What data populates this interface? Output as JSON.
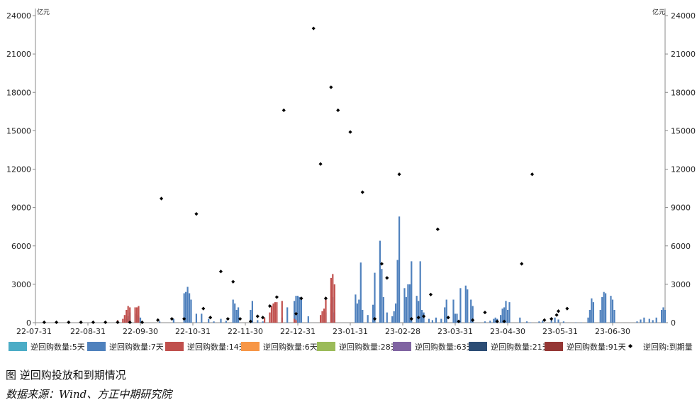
{
  "caption": {
    "title": "图   逆回购投放和到期情况",
    "source": "数据来源：Wind、方正中期研究院"
  },
  "chart_data": {
    "type": "bar",
    "unit_left": "亿元",
    "unit_right": "亿元",
    "ylim": [
      0,
      24000
    ],
    "y_ticks": [
      0,
      3000,
      6000,
      9000,
      12000,
      15000,
      18000,
      21000,
      24000
    ],
    "x_tick_labels": [
      "22-07-31",
      "22-08-31",
      "22-09-30",
      "22-10-31",
      "22-11-30",
      "22-12-31",
      "23-01-31",
      "23-02-28",
      "23-03-31",
      "23-04-30",
      "23-05-31",
      "23-06-30"
    ],
    "x_domain": [
      "2022-07-31",
      "2023-07-26"
    ],
    "grid": false,
    "legend_position": "bottom",
    "colors": {
      "5d": "#4bacc6",
      "7d": "#4f81bd",
      "14d": "#c0504d",
      "6d": "#f79646",
      "28d": "#9bbb59",
      "63d": "#8064a2",
      "21d": "#2c4d75",
      "91d": "#953735",
      "maturity": "#000000",
      "axis": "#888888"
    },
    "legend": [
      {
        "key": "5d",
        "label": "逆回购数量:5天",
        "marker": "bar"
      },
      {
        "key": "7d",
        "label": "逆回购数量:7天",
        "marker": "bar"
      },
      {
        "key": "14d",
        "label": "逆回购数量:14天",
        "marker": "bar"
      },
      {
        "key": "6d",
        "label": "逆回购数量:6天",
        "marker": "bar"
      },
      {
        "key": "28d",
        "label": "逆回购数量:28天",
        "marker": "bar"
      },
      {
        "key": "63d",
        "label": "逆回购数量:63天",
        "marker": "bar"
      },
      {
        "key": "21d",
        "label": "逆回购数量:21天",
        "marker": "bar"
      },
      {
        "key": "91d",
        "label": "逆回购数量:91天",
        "marker": "bar"
      },
      {
        "key": "maturity",
        "label": "逆回购:到期量",
        "marker": "diamond"
      }
    ],
    "series": [
      {
        "key": "7d",
        "name": "逆回购数量:7天",
        "points": [
          [
            "2022-08-05",
            20
          ],
          [
            "2022-08-12",
            20
          ],
          [
            "2022-08-19",
            20
          ],
          [
            "2022-08-26",
            20
          ],
          [
            "2022-09-02",
            20
          ],
          [
            "2022-09-09",
            20
          ],
          [
            "2022-09-16",
            20
          ],
          [
            "2022-09-21",
            300
          ],
          [
            "2022-09-22",
            500
          ],
          [
            "2022-09-23",
            800
          ],
          [
            "2022-09-26",
            700
          ],
          [
            "2022-09-27",
            600
          ],
          [
            "2022-09-28",
            500
          ],
          [
            "2022-09-29",
            400
          ],
          [
            "2022-10-10",
            100
          ],
          [
            "2022-10-18",
            300
          ],
          [
            "2022-10-24",
            2300
          ],
          [
            "2022-10-25",
            2400
          ],
          [
            "2022-10-26",
            2800
          ],
          [
            "2022-10-27",
            2300
          ],
          [
            "2022-10-28",
            1800
          ],
          [
            "2022-10-31",
            700
          ],
          [
            "2022-11-03",
            700
          ],
          [
            "2022-11-07",
            300
          ],
          [
            "2022-11-10",
            100
          ],
          [
            "2022-11-14",
            300
          ],
          [
            "2022-11-17",
            150
          ],
          [
            "2022-11-21",
            1800
          ],
          [
            "2022-11-22",
            1500
          ],
          [
            "2022-11-23",
            1000
          ],
          [
            "2022-11-24",
            1200
          ],
          [
            "2022-12-01",
            1000
          ],
          [
            "2022-12-02",
            1700
          ],
          [
            "2022-12-05",
            200
          ],
          [
            "2022-12-08",
            100
          ],
          [
            "2022-12-19",
            400
          ],
          [
            "2022-12-22",
            1200
          ],
          [
            "2022-12-26",
            1700
          ],
          [
            "2022-12-27",
            2100
          ],
          [
            "2022-12-28",
            2100
          ],
          [
            "2022-12-29",
            2000
          ],
          [
            "2022-12-30",
            1800
          ],
          [
            "2023-01-03",
            500
          ],
          [
            "2023-01-13",
            800
          ],
          [
            "2023-01-16",
            1500
          ],
          [
            "2023-01-17",
            2000
          ],
          [
            "2023-01-18",
            800
          ],
          [
            "2023-01-30",
            2200
          ],
          [
            "2023-01-31",
            1500
          ],
          [
            "2023-02-01",
            1800
          ],
          [
            "2023-02-02",
            4700
          ],
          [
            "2023-02-03",
            1000
          ],
          [
            "2023-02-06",
            600
          ],
          [
            "2023-02-09",
            1400
          ],
          [
            "2023-02-10",
            3900
          ],
          [
            "2023-02-13",
            6400
          ],
          [
            "2023-02-14",
            4200
          ],
          [
            "2023-02-15",
            2000
          ],
          [
            "2023-02-17",
            800
          ],
          [
            "2023-02-20",
            500
          ],
          [
            "2023-02-21",
            900
          ],
          [
            "2023-02-22",
            1500
          ],
          [
            "2023-02-23",
            4900
          ],
          [
            "2023-02-24",
            8300
          ],
          [
            "2023-02-27",
            2700
          ],
          [
            "2023-02-28",
            2000
          ],
          [
            "2023-03-01",
            3000
          ],
          [
            "2023-03-02",
            3000
          ],
          [
            "2023-03-03",
            4800
          ],
          [
            "2023-03-06",
            2100
          ],
          [
            "2023-03-07",
            1700
          ],
          [
            "2023-03-08",
            4800
          ],
          [
            "2023-03-09",
            1000
          ],
          [
            "2023-03-10",
            800
          ],
          [
            "2023-03-13",
            300
          ],
          [
            "2023-03-15",
            200
          ],
          [
            "2023-03-17",
            400
          ],
          [
            "2023-03-20",
            300
          ],
          [
            "2023-03-22",
            1200
          ],
          [
            "2023-03-23",
            1800
          ],
          [
            "2023-03-27",
            1800
          ],
          [
            "2023-03-28",
            700
          ],
          [
            "2023-03-29",
            700
          ],
          [
            "2023-03-31",
            2700
          ],
          [
            "2023-04-03",
            2900
          ],
          [
            "2023-04-04",
            2600
          ],
          [
            "2023-04-06",
            1800
          ],
          [
            "2023-04-07",
            1300
          ],
          [
            "2023-04-14",
            100
          ],
          [
            "2023-04-17",
            150
          ],
          [
            "2023-04-19",
            300
          ],
          [
            "2023-04-20",
            400
          ],
          [
            "2023-04-21",
            300
          ],
          [
            "2023-04-23",
            600
          ],
          [
            "2023-04-24",
            1100
          ],
          [
            "2023-04-25",
            1200
          ],
          [
            "2023-04-26",
            1700
          ],
          [
            "2023-04-27",
            1000
          ],
          [
            "2023-04-28",
            1600
          ],
          [
            "2023-05-04",
            400
          ],
          [
            "2023-05-08",
            100
          ],
          [
            "2023-05-10",
            20
          ],
          [
            "2023-05-15",
            100
          ],
          [
            "2023-05-17",
            150
          ],
          [
            "2023-05-22",
            200
          ],
          [
            "2023-05-24",
            400
          ],
          [
            "2023-05-26",
            250
          ],
          [
            "2023-05-29",
            100
          ],
          [
            "2023-06-05",
            20
          ],
          [
            "2023-06-08",
            20
          ],
          [
            "2023-06-12",
            400
          ],
          [
            "2023-06-13",
            1000
          ],
          [
            "2023-06-14",
            1900
          ],
          [
            "2023-06-15",
            1600
          ],
          [
            "2023-06-19",
            1000
          ],
          [
            "2023-06-20",
            2000
          ],
          [
            "2023-06-21",
            2400
          ],
          [
            "2023-06-22",
            2300
          ],
          [
            "2023-06-25",
            2100
          ],
          [
            "2023-06-26",
            1800
          ],
          [
            "2023-06-27",
            1000
          ],
          [
            "2023-07-10",
            100
          ],
          [
            "2023-07-12",
            250
          ],
          [
            "2023-07-14",
            400
          ],
          [
            "2023-07-17",
            300
          ],
          [
            "2023-07-19",
            200
          ],
          [
            "2023-07-21",
            400
          ],
          [
            "2023-07-24",
            1000
          ],
          [
            "2023-07-25",
            1200
          ],
          [
            "2023-07-26",
            1000
          ]
        ]
      },
      {
        "key": "14d",
        "name": "逆回购数量:14天",
        "points": [
          [
            "2022-09-16",
            200
          ],
          [
            "2022-09-19",
            300
          ],
          [
            "2022-09-20",
            600
          ],
          [
            "2022-09-21",
            1000
          ],
          [
            "2022-09-22",
            1300
          ],
          [
            "2022-09-23",
            1200
          ],
          [
            "2022-09-26",
            1200
          ],
          [
            "2022-09-27",
            1200
          ],
          [
            "2022-09-28",
            1300
          ],
          [
            "2022-12-09",
            400
          ],
          [
            "2022-12-12",
            800
          ],
          [
            "2022-12-13",
            1300
          ],
          [
            "2022-12-14",
            1500
          ],
          [
            "2022-12-15",
            1600
          ],
          [
            "2022-12-16",
            1600
          ],
          [
            "2022-12-19",
            1700
          ],
          [
            "2022-12-26",
            300
          ],
          [
            "2022-12-27",
            200
          ],
          [
            "2023-01-10",
            600
          ],
          [
            "2023-01-11",
            900
          ],
          [
            "2023-01-12",
            1100
          ],
          [
            "2023-01-13",
            2000
          ],
          [
            "2023-01-16",
            3500
          ],
          [
            "2023-01-17",
            3800
          ],
          [
            "2023-01-18",
            3000
          ]
        ]
      },
      {
        "key": "maturity",
        "name": "逆回购:到期量",
        "points": [
          [
            "2022-08-05",
            30
          ],
          [
            "2022-08-12",
            30
          ],
          [
            "2022-08-19",
            30
          ],
          [
            "2022-08-26",
            30
          ],
          [
            "2022-09-02",
            30
          ],
          [
            "2022-09-09",
            30
          ],
          [
            "2022-09-16",
            30
          ],
          [
            "2022-09-23",
            30
          ],
          [
            "2022-09-30",
            30
          ],
          [
            "2022-10-09",
            200
          ],
          [
            "2022-10-11",
            9700
          ],
          [
            "2022-10-17",
            300
          ],
          [
            "2022-10-24",
            300
          ],
          [
            "2022-10-31",
            8500
          ],
          [
            "2022-11-04",
            1100
          ],
          [
            "2022-11-08",
            400
          ],
          [
            "2022-11-14",
            4000
          ],
          [
            "2022-11-18",
            300
          ],
          [
            "2022-11-21",
            3200
          ],
          [
            "2022-11-25",
            300
          ],
          [
            "2022-12-01",
            100
          ],
          [
            "2022-12-05",
            500
          ],
          [
            "2022-12-08",
            400
          ],
          [
            "2022-12-12",
            1300
          ],
          [
            "2022-12-16",
            2000
          ],
          [
            "2022-12-20",
            16600
          ],
          [
            "2022-12-27",
            700
          ],
          [
            "2022-12-30",
            1900
          ],
          [
            "2023-01-06",
            23000
          ],
          [
            "2023-01-10",
            12400
          ],
          [
            "2023-01-13",
            1900
          ],
          [
            "2023-01-16",
            18400
          ],
          [
            "2023-01-20",
            16600
          ],
          [
            "2023-01-27",
            14900
          ],
          [
            "2023-02-03",
            10200
          ],
          [
            "2023-02-10",
            300
          ],
          [
            "2023-02-14",
            4600
          ],
          [
            "2023-02-17",
            3500
          ],
          [
            "2023-02-24",
            11600
          ],
          [
            "2023-03-03",
            300
          ],
          [
            "2023-03-07",
            400
          ],
          [
            "2023-03-10",
            500
          ],
          [
            "2023-03-14",
            2200
          ],
          [
            "2023-03-18",
            7300
          ],
          [
            "2023-03-24",
            400
          ],
          [
            "2023-03-30",
            100
          ],
          [
            "2023-04-07",
            200
          ],
          [
            "2023-04-14",
            800
          ],
          [
            "2023-04-21",
            100
          ],
          [
            "2023-04-25",
            100
          ],
          [
            "2023-05-05",
            4600
          ],
          [
            "2023-05-11",
            11600
          ],
          [
            "2023-05-18",
            200
          ],
          [
            "2023-05-22",
            300
          ],
          [
            "2023-05-25",
            600
          ],
          [
            "2023-05-26",
            900
          ],
          [
            "2023-05-31",
            1100
          ]
        ]
      }
    ]
  }
}
